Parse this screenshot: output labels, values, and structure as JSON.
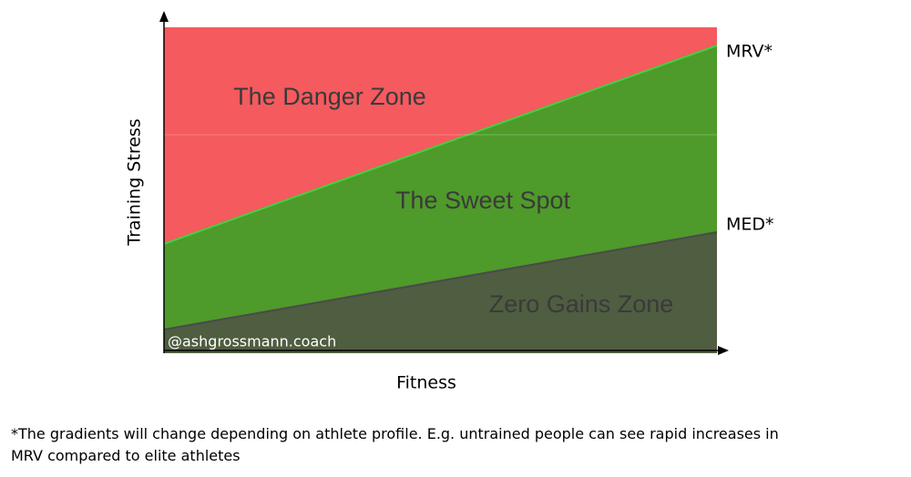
{
  "diagram": {
    "zones": [
      "The Danger Zone",
      "The Sweet Spot",
      "Zero Gains Zone"
    ],
    "line_labels": [
      "MRV*",
      "MED*"
    ],
    "watermark": "@ashgrossmann.coach",
    "y_axis_label": "Training Stress",
    "x_axis_label": "Fitness",
    "footnote": [
      "*The gradients will change depending on athlete profile.  E.g. untrained people can see rapid increases in",
      "MRV compared to elite athletes"
    ]
  }
}
